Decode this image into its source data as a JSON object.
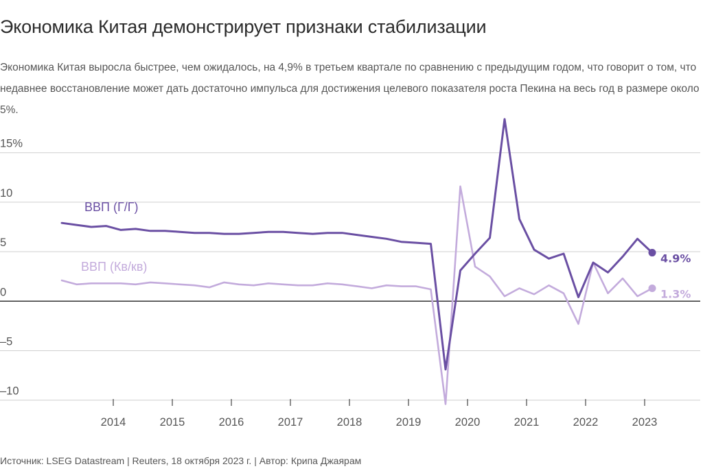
{
  "header": {
    "title": "Экономика Китая демонстрирует признаки стабилизации",
    "subtitle": "Экономика Китая выросла быстрее, чем ожидалось, на 4,9% в третьем квартале по сравнению с предыдущим годом, что говорит о том, что недавнее восстановление может дать достаточно импульса для достижения целевого показателя роста Пекина на весь год в размере около 5%."
  },
  "footer": {
    "source": "Источник: LSEG Datastream | Reuters, 18 октября 2023 г. | Автор: Крипа Джаярам"
  },
  "colors": {
    "yoy": "#6a4fa3",
    "qoq": "#c3abdc",
    "grid": "#cfcfcf",
    "zero": "#222222"
  },
  "chart_data": {
    "type": "line",
    "x_start": "2013 Q3",
    "x_step": "quarter",
    "xlim": [
      2013.5,
      2024.25
    ],
    "x_ticks": [
      {
        "x": 2014.0,
        "label": "2014"
      },
      {
        "x": 2015.0,
        "label": "2015"
      },
      {
        "x": 2016.0,
        "label": "2016"
      },
      {
        "x": 2017.0,
        "label": "2017"
      },
      {
        "x": 2018.0,
        "label": "2018"
      },
      {
        "x": 2019.0,
        "label": "2019"
      },
      {
        "x": 2020.0,
        "label": "2020"
      },
      {
        "x": 2021.0,
        "label": "2021"
      },
      {
        "x": 2022.0,
        "label": "2022"
      },
      {
        "x": 2023.0,
        "label": "2023"
      }
    ],
    "ylim": [
      -10.3,
      19
    ],
    "y_ticks": [
      {
        "v": 15,
        "label": "15%"
      },
      {
        "v": 10,
        "label": "10"
      },
      {
        "v": 5,
        "label": "5"
      },
      {
        "v": 0,
        "label": "0"
      },
      {
        "v": -5,
        "label": "–5"
      },
      {
        "v": -10,
        "label": "–10"
      }
    ],
    "series": [
      {
        "name": "ВВП (Г/Г)",
        "color_key": "yoy",
        "end_label": "4.9%",
        "values": [
          7.9,
          7.7,
          7.5,
          7.6,
          7.2,
          7.3,
          7.1,
          7.1,
          7.0,
          6.9,
          6.9,
          6.8,
          6.8,
          6.9,
          7.0,
          7.0,
          6.9,
          6.8,
          6.9,
          6.9,
          6.7,
          6.5,
          6.3,
          6.0,
          5.9,
          5.8,
          -6.9,
          3.1,
          4.8,
          6.4,
          18.4,
          8.3,
          5.2,
          4.3,
          4.8,
          0.4,
          3.9,
          2.9,
          4.5,
          6.3,
          4.9
        ]
      },
      {
        "name": "ВВП (Кв/кв)",
        "color_key": "qoq",
        "end_label": "1.3%",
        "values": [
          2.1,
          1.7,
          1.8,
          1.8,
          1.8,
          1.7,
          1.9,
          1.8,
          1.7,
          1.6,
          1.4,
          1.9,
          1.7,
          1.6,
          1.8,
          1.7,
          1.6,
          1.6,
          1.8,
          1.7,
          1.5,
          1.3,
          1.6,
          1.5,
          1.5,
          1.2,
          -10.4,
          11.6,
          3.5,
          2.5,
          0.5,
          1.3,
          0.7,
          1.6,
          0.8,
          -2.3,
          3.9,
          0.8,
          2.3,
          0.5,
          1.3
        ]
      }
    ]
  }
}
